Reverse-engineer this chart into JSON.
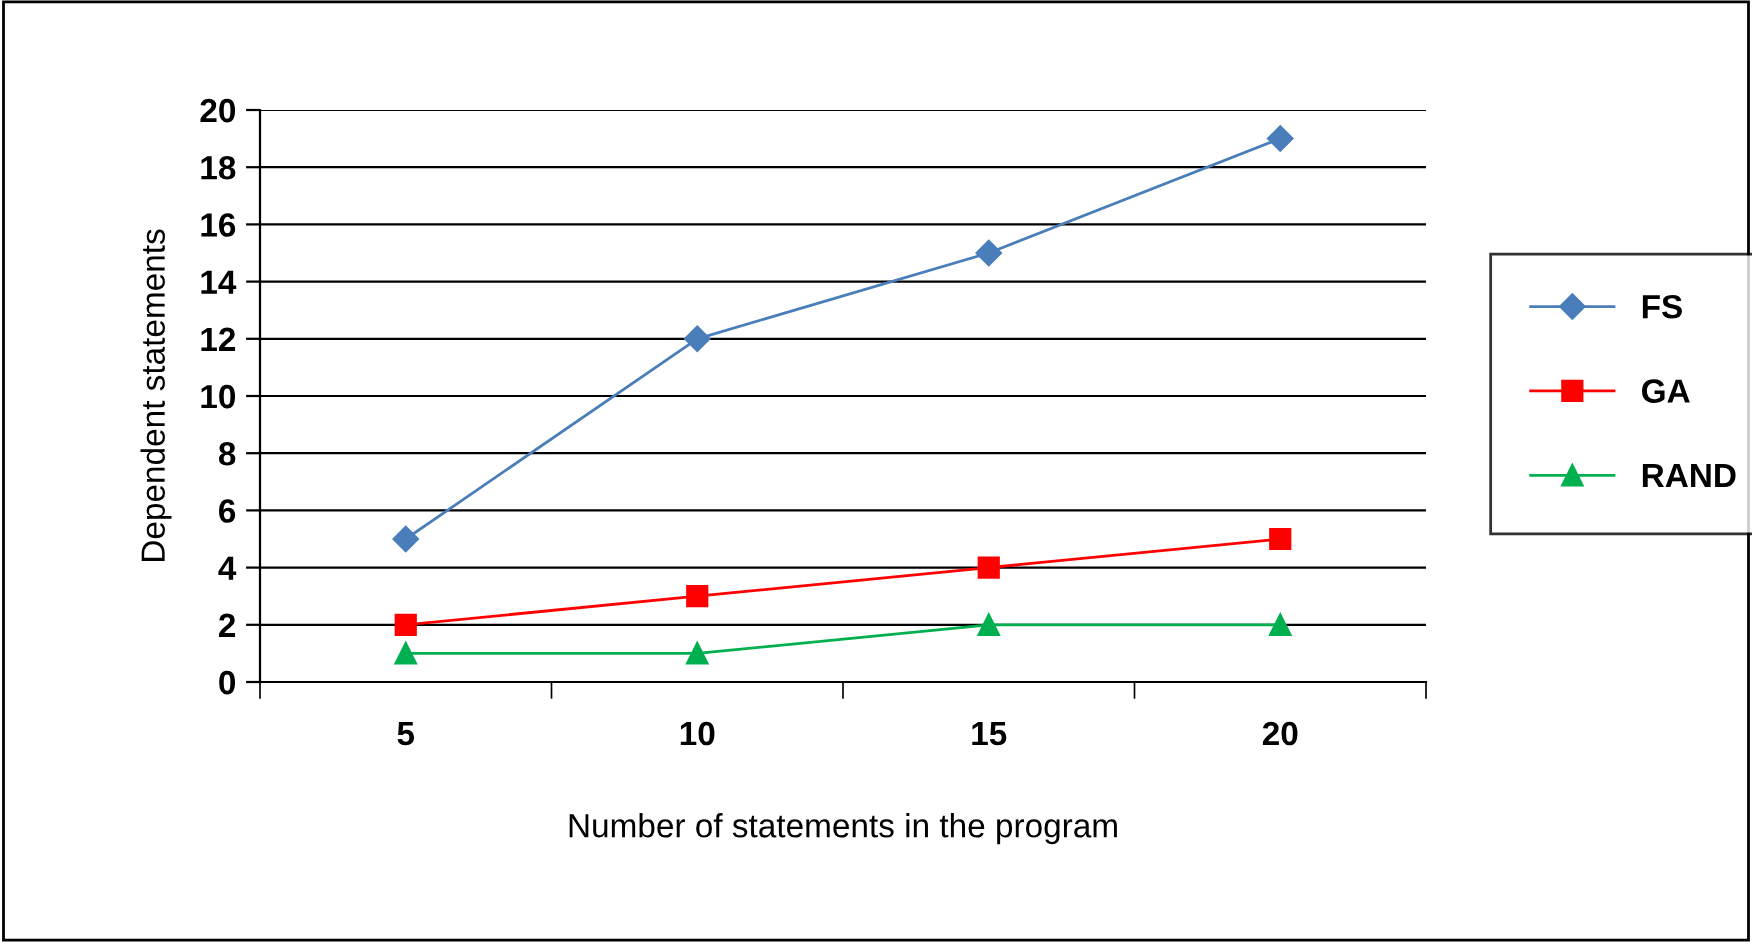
{
  "chart_data": {
    "type": "line",
    "xlabel": "Number of statements in the program",
    "ylabel": "Dependent statements",
    "categories": [
      "5",
      "10",
      "15",
      "20"
    ],
    "series": [
      {
        "name": "FS",
        "color": "#4a7ebb",
        "marker": "diamond",
        "values": [
          5,
          12,
          15,
          19
        ]
      },
      {
        "name": "GA",
        "color": "#ff0000",
        "marker": "square",
        "values": [
          2,
          3,
          4,
          5
        ]
      },
      {
        "name": "RAND",
        "color": "#00b050",
        "marker": "triangle",
        "values": [
          1,
          1,
          2,
          2
        ]
      }
    ],
    "ylim": [
      0,
      20
    ],
    "yticks": [
      0,
      2,
      4,
      6,
      8,
      10,
      12,
      14,
      16,
      18,
      20
    ],
    "grid": "y",
    "legend": "right"
  }
}
